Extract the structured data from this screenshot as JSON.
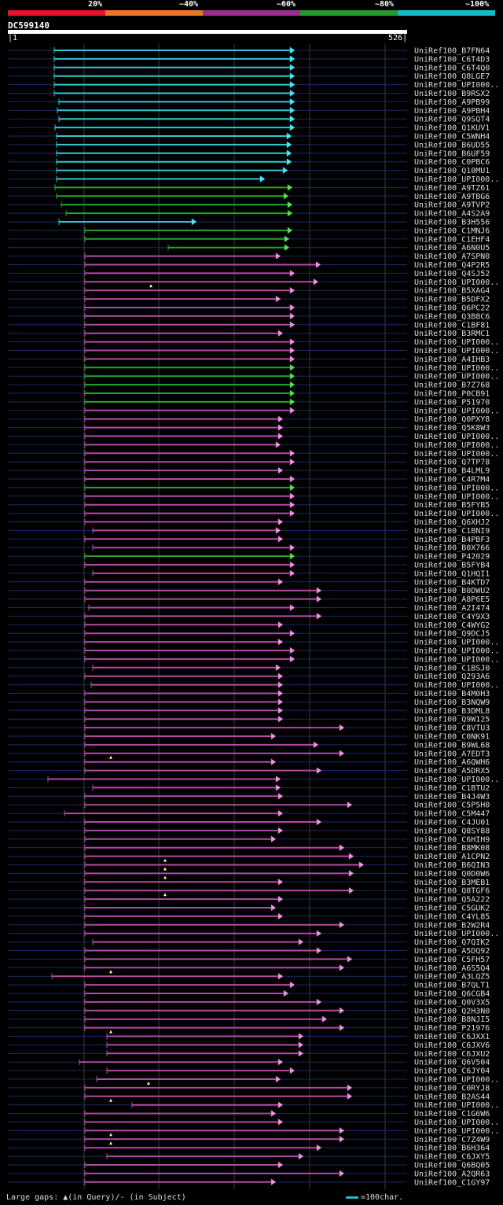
{
  "legend": {
    "labels": [
      "20%",
      "~40%",
      "~60%",
      "~80%",
      "~100%"
    ],
    "colors": [
      "#e8112d",
      "#e87722",
      "#9b2d92",
      "#1f9c2b",
      "#17b8c6"
    ]
  },
  "query": {
    "name": "DC599140",
    "start": "1",
    "end": "526"
  },
  "hits": [
    {
      "name": "UniRef100_B7FN64",
      "s": 69,
      "e": 374,
      "c": "cyan"
    },
    {
      "name": "UniRef100_C6T4D3",
      "s": 69,
      "e": 374,
      "c": "cyan"
    },
    {
      "name": "UniRef100_C6T4Q0",
      "s": 69,
      "e": 374,
      "c": "cyan"
    },
    {
      "name": "UniRef100_Q8LGE7",
      "s": 69,
      "e": 374,
      "c": "cyan"
    },
    {
      "name": "UniRef100_UPI000..",
      "s": 69,
      "e": 374,
      "c": "cyan"
    },
    {
      "name": "UniRef100_B9RSX2",
      "s": 69,
      "e": 374,
      "c": "cyan"
    },
    {
      "name": "UniRef100_A9PB99",
      "s": 75,
      "e": 374,
      "c": "cyan"
    },
    {
      "name": "UniRef100_A9PBH4",
      "s": 73,
      "e": 374,
      "c": "cyan"
    },
    {
      "name": "UniRef100_Q9SQT4",
      "s": 75,
      "e": 374,
      "c": "cyan"
    },
    {
      "name": "UniRef100_Q1KUV1",
      "s": 70,
      "e": 374,
      "c": "cyan"
    },
    {
      "name": "UniRef100_C5WNH4",
      "s": 72,
      "e": 370,
      "c": "cyan"
    },
    {
      "name": "UniRef100_B6UD55",
      "s": 72,
      "e": 370,
      "c": "cyan"
    },
    {
      "name": "UniRef100_B6UF59",
      "s": 72,
      "e": 370,
      "c": "cyan"
    },
    {
      "name": "UniRef100_C0PBC6",
      "s": 72,
      "e": 370,
      "c": "cyan"
    },
    {
      "name": "UniRef100_Q10MU1",
      "s": 72,
      "e": 365,
      "c": "cyan"
    },
    {
      "name": "UniRef100_UPI000..",
      "s": 72,
      "e": 336,
      "c": "cyan"
    },
    {
      "name": "UniRef100_A9TZ61",
      "s": 70,
      "e": 371,
      "c": "green"
    },
    {
      "name": "UniRef100_A9TBG6",
      "s": 72,
      "e": 366,
      "c": "green"
    },
    {
      "name": "UniRef100_A9TVP2",
      "s": 78,
      "e": 371,
      "c": "green"
    },
    {
      "name": "UniRef100_A4S2A9",
      "s": 84,
      "e": 371,
      "c": "green"
    },
    {
      "name": "UniRef100_B3H556",
      "s": 75,
      "e": 249,
      "c": "cyan"
    },
    {
      "name": "UniRef100_C1MNJ6",
      "s": 108,
      "e": 371,
      "c": "green"
    },
    {
      "name": "UniRef100_C1EHF4",
      "s": 108,
      "e": 367,
      "c": "green"
    },
    {
      "name": "UniRef100_A6N0U5",
      "s": 214,
      "e": 367,
      "c": "green"
    },
    {
      "name": "UniRef100_A7SPN0",
      "s": 108,
      "e": 356,
      "c": "purple"
    },
    {
      "name": "UniRef100_Q4P2R5",
      "s": 108,
      "e": 407,
      "c": "purple"
    },
    {
      "name": "UniRef100_Q4SJ52",
      "s": 108,
      "e": 374,
      "c": "purple"
    },
    {
      "name": "UniRef100_UPI000..",
      "s": 108,
      "e": 404,
      "c": "purple",
      "q": 192
    },
    {
      "name": "UniRef100_B5XAG4",
      "s": 108,
      "e": 374,
      "c": "purple"
    },
    {
      "name": "UniRef100_B5DFX2",
      "s": 108,
      "e": 356,
      "c": "purple"
    },
    {
      "name": "UniRef100_Q6PC22",
      "s": 108,
      "e": 374,
      "c": "purple"
    },
    {
      "name": "UniRef100_Q3B8C6",
      "s": 108,
      "e": 374,
      "c": "purple"
    },
    {
      "name": "UniRef100_C1BF81",
      "s": 108,
      "e": 374,
      "c": "purple"
    },
    {
      "name": "UniRef100_B3RMC1",
      "s": 108,
      "e": 359,
      "c": "purple"
    },
    {
      "name": "UniRef100_UPI000..",
      "s": 108,
      "e": 374,
      "c": "purple"
    },
    {
      "name": "UniRef100_UPI000..",
      "s": 108,
      "e": 374,
      "c": "purple"
    },
    {
      "name": "UniRef100_A4IHB3",
      "s": 108,
      "e": 374,
      "c": "purple"
    },
    {
      "name": "UniRef100_UPI000..",
      "s": 108,
      "e": 374,
      "c": "green"
    },
    {
      "name": "UniRef100_UPI000..",
      "s": 108,
      "e": 374,
      "c": "green"
    },
    {
      "name": "UniRef100_B7Z768",
      "s": 108,
      "e": 374,
      "c": "green"
    },
    {
      "name": "UniRef100_P0CB91",
      "s": 108,
      "e": 374,
      "c": "green"
    },
    {
      "name": "UniRef100_P51970",
      "s": 108,
      "e": 374,
      "c": "green"
    },
    {
      "name": "UniRef100_UPI000..",
      "s": 108,
      "e": 374,
      "c": "purple"
    },
    {
      "name": "UniRef100_Q0PXY8",
      "s": 108,
      "e": 359,
      "c": "purple"
    },
    {
      "name": "UniRef100_Q5K8W3",
      "s": 108,
      "e": 359,
      "c": "purple"
    },
    {
      "name": "UniRef100_UPI000..",
      "s": 108,
      "e": 359,
      "c": "purple"
    },
    {
      "name": "UniRef100_UPI000..",
      "s": 108,
      "e": 356,
      "c": "purple"
    },
    {
      "name": "UniRef100_UPI000..",
      "s": 108,
      "e": 374,
      "c": "purple"
    },
    {
      "name": "UniRef100_Q7TP78",
      "s": 108,
      "e": 374,
      "c": "purple"
    },
    {
      "name": "UniRef100_B4LML9",
      "s": 108,
      "e": 359,
      "c": "purple"
    },
    {
      "name": "UniRef100_C4R7M4",
      "s": 108,
      "e": 374,
      "c": "purple"
    },
    {
      "name": "UniRef100_UPI000..",
      "s": 108,
      "e": 374,
      "c": "green"
    },
    {
      "name": "UniRef100_UPI000..",
      "s": 108,
      "e": 374,
      "c": "purple"
    },
    {
      "name": "UniRef100_B5FYB5",
      "s": 108,
      "e": 374,
      "c": "purple"
    },
    {
      "name": "UniRef100_UPI000..",
      "s": 108,
      "e": 374,
      "c": "purple"
    },
    {
      "name": "UniRef100_Q6XHJ2",
      "s": 108,
      "e": 359,
      "c": "purple"
    },
    {
      "name": "UniRef100_C1BNI9",
      "s": 118,
      "e": 356,
      "c": "purple"
    },
    {
      "name": "UniRef100_B4PBF3",
      "s": 108,
      "e": 359,
      "c": "purple"
    },
    {
      "name": "UniRef100_B0X766",
      "s": 118,
      "e": 374,
      "c": "purple"
    },
    {
      "name": "UniRef100_P42029",
      "s": 108,
      "e": 374,
      "c": "green"
    },
    {
      "name": "UniRef100_B5FYB4",
      "s": 108,
      "e": 374,
      "c": "purple"
    },
    {
      "name": "UniRef100_Q1HQI1",
      "s": 118,
      "e": 374,
      "c": "purple"
    },
    {
      "name": "UniRef100_B4KTD7",
      "s": 108,
      "e": 359,
      "c": "purple"
    },
    {
      "name": "UniRef100_B0DWU2",
      "s": 108,
      "e": 408,
      "c": "purple"
    },
    {
      "name": "UniRef100_A8P6E5",
      "s": 108,
      "e": 408,
      "c": "purple"
    },
    {
      "name": "UniRef100_A2I474",
      "s": 113,
      "e": 374,
      "c": "purple"
    },
    {
      "name": "UniRef100_C4Y9X3",
      "s": 108,
      "e": 408,
      "c": "purple"
    },
    {
      "name": "UniRef100_C4WYG2",
      "s": 108,
      "e": 359,
      "c": "purple"
    },
    {
      "name": "UniRef100_Q9DCJ5",
      "s": 108,
      "e": 374,
      "c": "purple"
    },
    {
      "name": "UniRef100_UPI000..",
      "s": 108,
      "e": 359,
      "c": "purple"
    },
    {
      "name": "UniRef100_UPI000..",
      "s": 108,
      "e": 374,
      "c": "purple"
    },
    {
      "name": "UniRef100_UPI000..",
      "s": 108,
      "e": 374,
      "c": "purple"
    },
    {
      "name": "UniRef100_C1BSJ0",
      "s": 118,
      "e": 356,
      "c": "purple"
    },
    {
      "name": "UniRef100_Q293A6",
      "s": 108,
      "e": 359,
      "c": "purple"
    },
    {
      "name": "UniRef100_UPI000..",
      "s": 116,
      "e": 359,
      "c": "purple"
    },
    {
      "name": "UniRef100_B4M0H3",
      "s": 108,
      "e": 359,
      "c": "purple"
    },
    {
      "name": "UniRef100_B3NQW9",
      "s": 108,
      "e": 359,
      "c": "purple"
    },
    {
      "name": "UniRef100_B3DML8",
      "s": 108,
      "e": 359,
      "c": "purple"
    },
    {
      "name": "UniRef100_Q9W125",
      "s": 108,
      "e": 359,
      "c": "purple"
    },
    {
      "name": "UniRef100_C8VTU3",
      "s": 108,
      "e": 437,
      "c": "purple"
    },
    {
      "name": "UniRef100_C0NK91",
      "s": 108,
      "e": 350,
      "c": "purple"
    },
    {
      "name": "UniRef100_B9WL68",
      "s": 108,
      "e": 404,
      "c": "purple"
    },
    {
      "name": "UniRef100_A7EDT3",
      "s": 108,
      "e": 437,
      "c": "purple",
      "q": 141
    },
    {
      "name": "UniRef100_A6QWH6",
      "s": 108,
      "e": 350,
      "c": "purple"
    },
    {
      "name": "UniRef100_A5DRX5",
      "s": 108,
      "e": 408,
      "c": "purple"
    },
    {
      "name": "UniRef100_UPI000..",
      "s": 61,
      "e": 356,
      "c": "purple"
    },
    {
      "name": "UniRef100_C1BTU2",
      "s": 118,
      "e": 356,
      "c": "purple"
    },
    {
      "name": "UniRef100_B4J4W3",
      "s": 108,
      "e": 359,
      "c": "purple"
    },
    {
      "name": "UniRef100_C5P5H0",
      "s": 108,
      "e": 447,
      "c": "purple"
    },
    {
      "name": "UniRef100_C5M447",
      "s": 82,
      "e": 359,
      "c": "purple"
    },
    {
      "name": "UniRef100_C4JU01",
      "s": 108,
      "e": 408,
      "c": "purple"
    },
    {
      "name": "UniRef100_Q8SY88",
      "s": 108,
      "e": 359,
      "c": "purple"
    },
    {
      "name": "UniRef100_C6HIH9",
      "s": 108,
      "e": 350,
      "c": "purple"
    },
    {
      "name": "UniRef100_B8MK08",
      "s": 108,
      "e": 437,
      "c": "purple"
    },
    {
      "name": "UniRef100_A1CPN2",
      "s": 108,
      "e": 449,
      "c": "purple",
      "q": 210
    },
    {
      "name": "UniRef100_B6QIN3",
      "s": 108,
      "e": 462,
      "c": "purple",
      "q": 210
    },
    {
      "name": "UniRef100_Q0D0W6",
      "s": 108,
      "e": 449,
      "c": "purple",
      "q": 210
    },
    {
      "name": "UniRef100_B3MEB1",
      "s": 108,
      "e": 359,
      "c": "purple"
    },
    {
      "name": "UniRef100_Q8TGF6",
      "s": 108,
      "e": 449,
      "c": "purple",
      "q": 210
    },
    {
      "name": "UniRef100_Q5A222",
      "s": 108,
      "e": 359,
      "c": "purple"
    },
    {
      "name": "UniRef100_C5GUK2",
      "s": 108,
      "e": 350,
      "c": "purple"
    },
    {
      "name": "UniRef100_C4YL85",
      "s": 108,
      "e": 359,
      "c": "purple"
    },
    {
      "name": "UniRef100_B2W2R4",
      "s": 108,
      "e": 437,
      "c": "purple"
    },
    {
      "name": "UniRef100_UPI000..",
      "s": 108,
      "e": 408,
      "c": "purple"
    },
    {
      "name": "UniRef100_Q7QIK2",
      "s": 118,
      "e": 385,
      "c": "purple"
    },
    {
      "name": "UniRef100_A5DQ92",
      "s": 108,
      "e": 408,
      "c": "purple"
    },
    {
      "name": "UniRef100_C5FH57",
      "s": 108,
      "e": 447,
      "c": "purple"
    },
    {
      "name": "UniRef100_A6S5Q4",
      "s": 108,
      "e": 437,
      "c": "purple",
      "q": 141
    },
    {
      "name": "UniRef100_A3LQZ5",
      "s": 66,
      "e": 359,
      "c": "purple"
    },
    {
      "name": "UniRef100_B7QLT1",
      "s": 108,
      "e": 374,
      "c": "purple"
    },
    {
      "name": "UniRef100_Q6CGB4",
      "s": 108,
      "e": 366,
      "c": "purple"
    },
    {
      "name": "UniRef100_Q0V3X5",
      "s": 108,
      "e": 408,
      "c": "purple"
    },
    {
      "name": "UniRef100_Q2H3N0",
      "s": 108,
      "e": 437,
      "c": "purple"
    },
    {
      "name": "UniRef100_B8NJI5",
      "s": 108,
      "e": 415,
      "c": "purple"
    },
    {
      "name": "UniRef100_P21976",
      "s": 108,
      "e": 437,
      "c": "purple",
      "q": 141
    },
    {
      "name": "UniRef100_C6JXX1",
      "s": 136,
      "e": 385,
      "c": "purple"
    },
    {
      "name": "UniRef100_C6JXV6",
      "s": 136,
      "e": 385,
      "c": "purple"
    },
    {
      "name": "UniRef100_C6JXU2",
      "s": 136,
      "e": 385,
      "c": "purple"
    },
    {
      "name": "UniRef100_Q6V504",
      "s": 101,
      "e": 359,
      "c": "purple"
    },
    {
      "name": "UniRef100_C6JY04",
      "s": 136,
      "e": 374,
      "c": "purple"
    },
    {
      "name": "UniRef100_UPI000..",
      "s": 123,
      "e": 356,
      "c": "purple",
      "q": 189
    },
    {
      "name": "UniRef100_C0RYJ8",
      "s": 108,
      "e": 447,
      "c": "purple"
    },
    {
      "name": "UniRef100_B2AS44",
      "s": 108,
      "e": 447,
      "c": "purple",
      "q": 141
    },
    {
      "name": "UniRef100_UPI000..",
      "s": 168,
      "e": 359,
      "c": "purple"
    },
    {
      "name": "UniRef100_C1G6W6",
      "s": 108,
      "e": 350,
      "c": "purple"
    },
    {
      "name": "UniRef100_UPI000..",
      "s": 108,
      "e": 359,
      "c": "purple"
    },
    {
      "name": "UniRef100_UPI000..",
      "s": 108,
      "e": 437,
      "c": "purple",
      "q": 141
    },
    {
      "name": "UniRef100_C7Z4W9",
      "s": 108,
      "e": 437,
      "c": "purple",
      "q": 141
    },
    {
      "name": "UniRef100_B6H364",
      "s": 108,
      "e": 408,
      "c": "purple"
    },
    {
      "name": "UniRef100_C6JXY5",
      "s": 136,
      "e": 385,
      "c": "purple"
    },
    {
      "name": "UniRef100_Q6BQ05",
      "s": 108,
      "e": 359,
      "c": "purple"
    },
    {
      "name": "UniRef100_A2QR63",
      "s": 108,
      "e": 437,
      "c": "purple"
    },
    {
      "name": "UniRef100_C1GY97",
      "s": 108,
      "e": 350,
      "c": "purple"
    }
  ],
  "footer": {
    "gaps_label": "Large gaps: ▲(in Query)/- (in Subject)",
    "scale_label": "=100char."
  }
}
